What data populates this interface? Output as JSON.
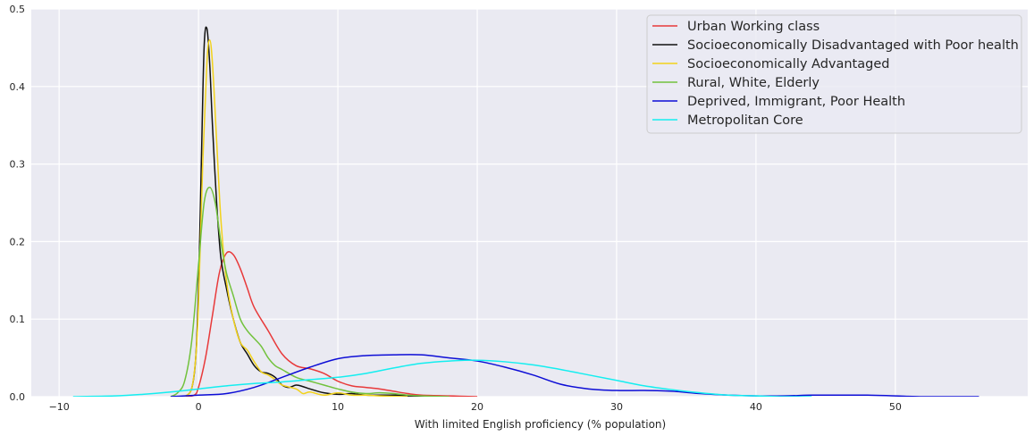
{
  "chart_data": {
    "type": "line",
    "title": "",
    "xlabel": "With limited English proficiency (% population)",
    "ylabel": "",
    "xlim": [
      -12,
      59.5
    ],
    "ylim": [
      0,
      0.5
    ],
    "x_ticks": [
      -10,
      0,
      10,
      20,
      30,
      40,
      50
    ],
    "x_tick_labels": [
      "−10",
      "0",
      "10",
      "20",
      "30",
      "40",
      "50"
    ],
    "y_ticks": [
      0.0,
      0.1,
      0.2,
      0.3,
      0.4,
      0.5
    ],
    "y_tick_labels": [
      "0.0",
      "0.1",
      "0.2",
      "0.3",
      "0.4",
      "0.5"
    ],
    "grid": true,
    "legend_position": "top-right",
    "background": "#eaeaf2",
    "series": [
      {
        "name": "Urban Working class",
        "color": "#e8393a",
        "points": [
          [
            -1,
            0
          ],
          [
            -0.3,
            0.002
          ],
          [
            0,
            0.012
          ],
          [
            0.5,
            0.05
          ],
          [
            1,
            0.105
          ],
          [
            1.5,
            0.16
          ],
          [
            2,
            0.185
          ],
          [
            2.5,
            0.183
          ],
          [
            3,
            0.165
          ],
          [
            3.5,
            0.14
          ],
          [
            4,
            0.115
          ],
          [
            5,
            0.085
          ],
          [
            6,
            0.055
          ],
          [
            7,
            0.04
          ],
          [
            8,
            0.036
          ],
          [
            9,
            0.03
          ],
          [
            10,
            0.02
          ],
          [
            11,
            0.014
          ],
          [
            12,
            0.012
          ],
          [
            13,
            0.01
          ],
          [
            14,
            0.007
          ],
          [
            15,
            0.004
          ],
          [
            16,
            0.002
          ],
          [
            18,
            0.001
          ],
          [
            20,
            0
          ]
        ]
      },
      {
        "name": "Socioeconomically Disadvantaged with Poor health",
        "color": "#111111",
        "points": [
          [
            -1,
            0
          ],
          [
            -0.5,
            0.01
          ],
          [
            -0.2,
            0.05
          ],
          [
            0,
            0.14
          ],
          [
            0.2,
            0.3
          ],
          [
            0.4,
            0.45
          ],
          [
            0.6,
            0.475
          ],
          [
            0.8,
            0.43
          ],
          [
            1,
            0.35
          ],
          [
            1.3,
            0.25
          ],
          [
            1.6,
            0.18
          ],
          [
            2,
            0.14
          ],
          [
            2.5,
            0.1
          ],
          [
            3,
            0.07
          ],
          [
            3.5,
            0.055
          ],
          [
            4,
            0.04
          ],
          [
            4.5,
            0.032
          ],
          [
            5,
            0.03
          ],
          [
            5.5,
            0.025
          ],
          [
            6,
            0.015
          ],
          [
            6.5,
            0.012
          ],
          [
            7,
            0.015
          ],
          [
            7.5,
            0.013
          ],
          [
            8,
            0.01
          ],
          [
            9,
            0.005
          ],
          [
            10,
            0.003
          ],
          [
            11,
            0.004
          ],
          [
            12,
            0.002
          ],
          [
            14,
            0.002
          ],
          [
            15,
            0.001
          ],
          [
            17,
            0
          ]
        ]
      },
      {
        "name": "Socioeconomically Advantaged",
        "color": "#f2d21a",
        "points": [
          [
            -1,
            0
          ],
          [
            -0.5,
            0.01
          ],
          [
            -0.2,
            0.05
          ],
          [
            0,
            0.12
          ],
          [
            0.3,
            0.3
          ],
          [
            0.6,
            0.43
          ],
          [
            0.8,
            0.46
          ],
          [
            1,
            0.43
          ],
          [
            1.3,
            0.33
          ],
          [
            1.6,
            0.23
          ],
          [
            2,
            0.15
          ],
          [
            2.5,
            0.1
          ],
          [
            3,
            0.07
          ],
          [
            3.5,
            0.06
          ],
          [
            4,
            0.045
          ],
          [
            4.5,
            0.032
          ],
          [
            5,
            0.028
          ],
          [
            5.5,
            0.022
          ],
          [
            6,
            0.015
          ],
          [
            7,
            0.01
          ],
          [
            7.5,
            0.004
          ],
          [
            8,
            0.006
          ],
          [
            9,
            0.002
          ],
          [
            10,
            0.005
          ],
          [
            11,
            0.002
          ],
          [
            12,
            0.002
          ],
          [
            13,
            0.001
          ],
          [
            15,
            0
          ]
        ]
      },
      {
        "name": "Rural, White, Elderly",
        "color": "#72c23d",
        "points": [
          [
            -2,
            0
          ],
          [
            -1.5,
            0.005
          ],
          [
            -1,
            0.02
          ],
          [
            -0.5,
            0.07
          ],
          [
            0,
            0.17
          ],
          [
            0.4,
            0.25
          ],
          [
            0.8,
            0.27
          ],
          [
            1.2,
            0.25
          ],
          [
            1.6,
            0.2
          ],
          [
            2,
            0.16
          ],
          [
            2.5,
            0.13
          ],
          [
            3,
            0.1
          ],
          [
            3.5,
            0.085
          ],
          [
            4,
            0.075
          ],
          [
            4.5,
            0.065
          ],
          [
            5,
            0.05
          ],
          [
            5.5,
            0.04
          ],
          [
            6,
            0.035
          ],
          [
            7,
            0.025
          ],
          [
            8,
            0.02
          ],
          [
            9,
            0.015
          ],
          [
            10,
            0.01
          ],
          [
            11,
            0.006
          ],
          [
            12,
            0.004
          ],
          [
            13,
            0.005
          ],
          [
            14,
            0.004
          ],
          [
            15,
            0.002
          ],
          [
            16,
            0.001
          ],
          [
            18,
            0
          ]
        ]
      },
      {
        "name": "Deprived, Immigrant, Poor Health",
        "color": "#0d0dd6",
        "points": [
          [
            -2,
            0
          ],
          [
            0,
            0.002
          ],
          [
            2,
            0.004
          ],
          [
            4,
            0.012
          ],
          [
            6,
            0.025
          ],
          [
            8,
            0.038
          ],
          [
            10,
            0.049
          ],
          [
            12,
            0.053
          ],
          [
            14,
            0.054
          ],
          [
            16,
            0.054
          ],
          [
            18,
            0.05
          ],
          [
            20,
            0.046
          ],
          [
            22,
            0.038
          ],
          [
            24,
            0.028
          ],
          [
            26,
            0.016
          ],
          [
            28,
            0.01
          ],
          [
            30,
            0.008
          ],
          [
            32,
            0.008
          ],
          [
            34,
            0.007
          ],
          [
            36,
            0.004
          ],
          [
            38,
            0.002
          ],
          [
            40,
            0.001
          ],
          [
            42,
            0.001
          ],
          [
            44,
            0.002
          ],
          [
            46,
            0.002
          ],
          [
            48,
            0.002
          ],
          [
            50,
            0.001
          ],
          [
            52,
            0.0
          ],
          [
            54,
            0.0
          ],
          [
            56,
            0
          ]
        ]
      },
      {
        "name": "Metropolitan Core",
        "color": "#14eef0",
        "points": [
          [
            -9,
            0
          ],
          [
            -6,
            0.001
          ],
          [
            -4,
            0.003
          ],
          [
            -2,
            0.006
          ],
          [
            0,
            0.01
          ],
          [
            2,
            0.014
          ],
          [
            4,
            0.017
          ],
          [
            6,
            0.019
          ],
          [
            8,
            0.022
          ],
          [
            10,
            0.025
          ],
          [
            12,
            0.03
          ],
          [
            14,
            0.037
          ],
          [
            16,
            0.043
          ],
          [
            18,
            0.046
          ],
          [
            20,
            0.047
          ],
          [
            22,
            0.045
          ],
          [
            24,
            0.041
          ],
          [
            26,
            0.035
          ],
          [
            28,
            0.028
          ],
          [
            30,
            0.021
          ],
          [
            32,
            0.014
          ],
          [
            34,
            0.009
          ],
          [
            36,
            0.005
          ],
          [
            38,
            0.002
          ],
          [
            40,
            0.001
          ],
          [
            42,
            0.0
          ],
          [
            44,
            0
          ]
        ]
      }
    ]
  }
}
